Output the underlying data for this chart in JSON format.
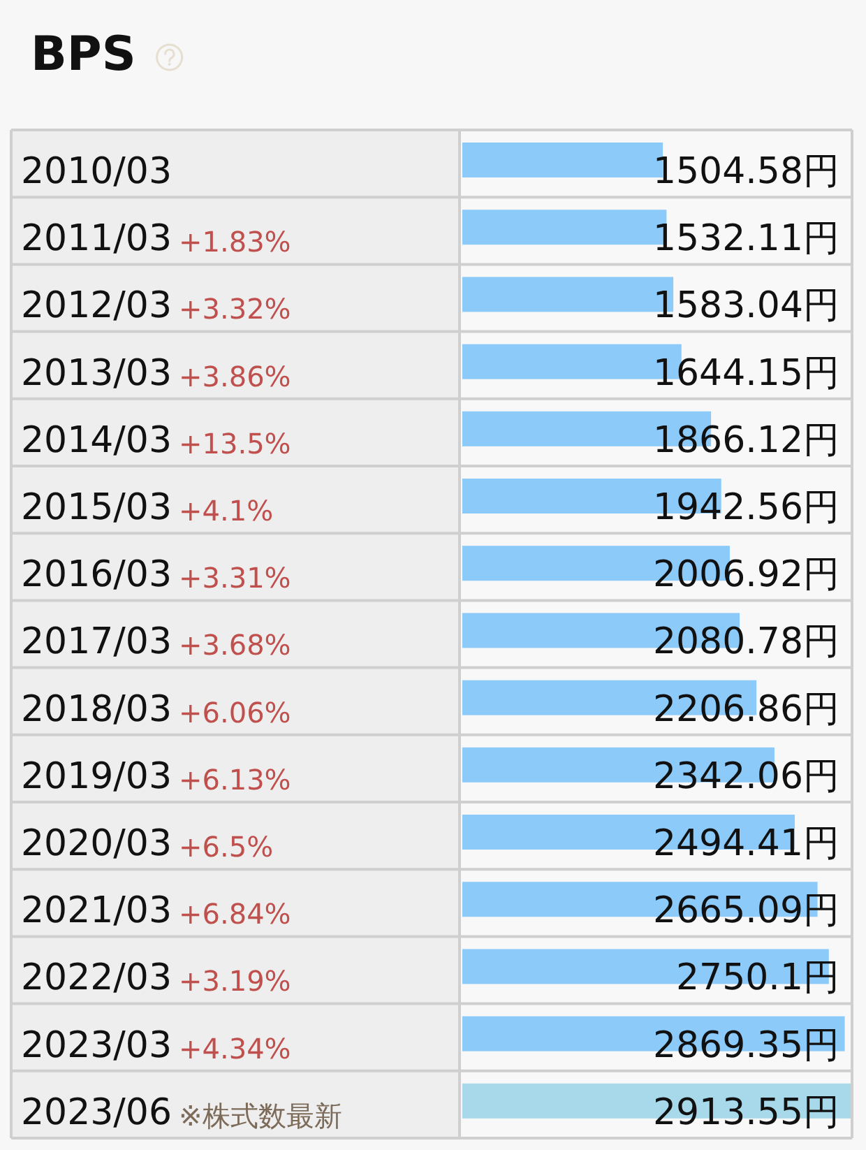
{
  "chart_data": {
    "type": "bar",
    "orientation": "horizontal",
    "title": "BPS",
    "categories": [
      "2010/03",
      "2011/03",
      "2012/03",
      "2013/03",
      "2014/03",
      "2015/03",
      "2016/03",
      "2017/03",
      "2018/03",
      "2019/03",
      "2020/03",
      "2021/03",
      "2022/03",
      "2023/03",
      "2023/06"
    ],
    "values": [
      1504.58,
      1532.11,
      1583.04,
      1644.15,
      1866.12,
      1942.56,
      2006.92,
      2080.78,
      2206.86,
      2342.06,
      2494.41,
      2665.09,
      2750.1,
      2869.35,
      2913.55
    ],
    "colors": [
      "#8ccafa",
      "#8ccafa",
      "#8ccafa",
      "#8ccafa",
      "#8ccafa",
      "#8ccafa",
      "#8ccafa",
      "#8ccafa",
      "#8ccafa",
      "#8ccafa",
      "#8ccafa",
      "#8ccafa",
      "#8ccafa",
      "#8ccafa",
      "#a8d9ea"
    ],
    "value_labels": [
      "1504.58円",
      "1532.11円",
      "1583.04円",
      "1644.15円",
      "1866.12円",
      "1942.56円",
      "2006.92円",
      "2080.78円",
      "2206.86円",
      "2342.06円",
      "2494.41円",
      "2665.09円",
      "2750.1円",
      "2869.35円",
      "2913.55円"
    ],
    "annotations": [
      "+1.83%",
      "+3.32%",
      "+3.86%",
      "+13.5%",
      "+4.1%",
      "+3.31%",
      "+3.68%",
      "+6.06%",
      "+6.13%",
      "+6.5%",
      "+6.84%",
      "+3.19%",
      "+4.34%",
      "※株式数最新"
    ]
  }
}
